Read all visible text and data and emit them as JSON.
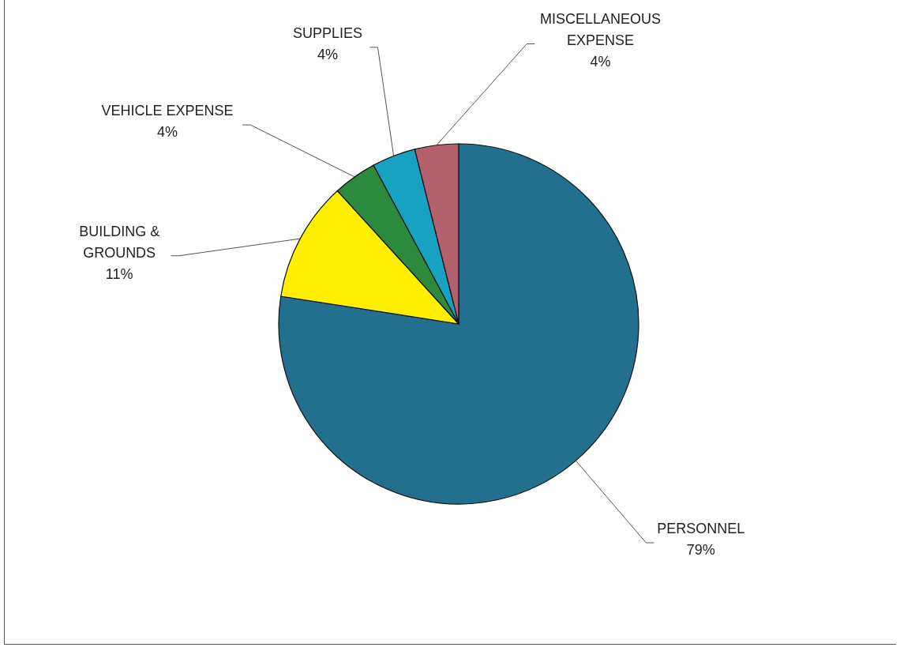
{
  "chart_data": {
    "type": "pie",
    "categories": [
      "PERSONNEL",
      "BUILDING & GROUNDS",
      "VEHICLE EXPENSE",
      "SUPPLIES",
      "MISCELLANEOUS EXPENSE"
    ],
    "values": [
      79,
      11,
      4,
      4,
      4
    ],
    "value_labels": [
      "79%",
      "11%",
      "4%",
      "4%",
      "4%"
    ],
    "colors": [
      "#22708e",
      "#fff000",
      "#2b8a3c",
      "#18a2c2",
      "#b3606f"
    ]
  }
}
